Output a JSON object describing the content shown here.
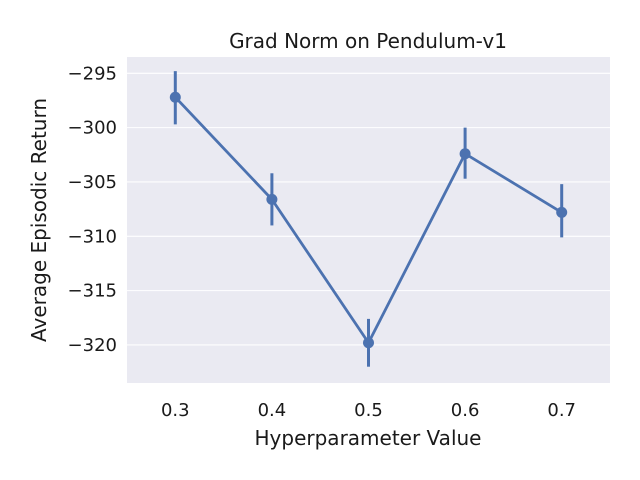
{
  "chart_data": {
    "type": "line",
    "title": "Grad Norm on Pendulum-v1",
    "xlabel": "Hyperparameter Value",
    "ylabel": "Average Episodic Return",
    "categories": [
      "0.3",
      "0.4",
      "0.5",
      "0.6",
      "0.7"
    ],
    "series": [
      {
        "values": [
          -297.2,
          -306.6,
          -319.8,
          -302.4,
          -307.8
        ],
        "ci_low": [
          -299.7,
          -309.0,
          -322.0,
          -304.7,
          -310.1
        ],
        "ci_high": [
          -294.8,
          -304.2,
          -317.6,
          -300.0,
          -305.2
        ]
      }
    ],
    "ylim": [
      -323.5,
      -293.5
    ],
    "yticks": [
      -295,
      -300,
      -305,
      -310,
      -315,
      -320
    ],
    "ytick_labels": [
      "−295",
      "−300",
      "−305",
      "−310",
      "−315",
      "−320"
    ],
    "grid": true,
    "colors": {
      "background": "#eaeaf2",
      "grid": "#ffffff",
      "series": "#4c72b0"
    }
  }
}
